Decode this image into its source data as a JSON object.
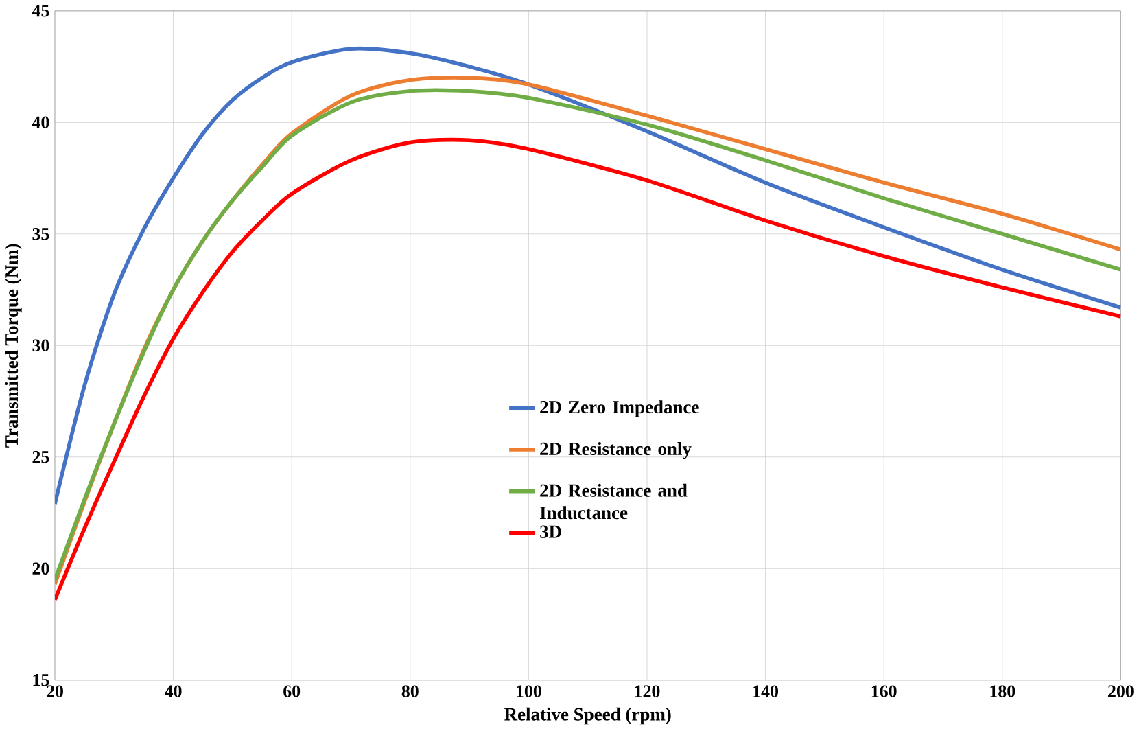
{
  "chart_data": {
    "type": "line",
    "xlabel": "Relative Speed (rpm)",
    "ylabel": "Transmitted Torque (Nm)",
    "xlim": [
      20,
      200
    ],
    "xticks": [
      20,
      40,
      60,
      80,
      100,
      120,
      140,
      160,
      180,
      200
    ],
    "ylim": [
      15,
      45
    ],
    "yticks": [
      15,
      20,
      25,
      30,
      35,
      40,
      45
    ],
    "grid": true,
    "legend": "center",
    "marker": "none",
    "line_style": "solid",
    "x": [
      20,
      25,
      30,
      35,
      40,
      45,
      50,
      55,
      60,
      70,
      80,
      90,
      100,
      120,
      140,
      160,
      180,
      200
    ],
    "series": [
      {
        "name": "2D Zero Impedance",
        "color": "#4472c4",
        "values": [
          22.9,
          28.2,
          32.3,
          35.2,
          37.5,
          39.5,
          41,
          42,
          42.7,
          43.3,
          43.1,
          42.5,
          41.7,
          39.6,
          37.3,
          35.3,
          33.4,
          31.7
        ]
      },
      {
        "name": "2D Resistance only",
        "color": "#ed7d31",
        "values": [
          19.3,
          23,
          26.5,
          29.8,
          32.5,
          34.7,
          36.5,
          38.1,
          39.5,
          41.2,
          41.9,
          42,
          41.7,
          40.3,
          38.8,
          37.3,
          35.9,
          34.3
        ]
      },
      {
        "name": "2D Resistance and Inductance",
        "color": "#70ad47",
        "values": [
          19.5,
          23.1,
          26.5,
          29.7,
          32.5,
          34.7,
          36.5,
          38,
          39.4,
          40.9,
          41.4,
          41.4,
          41.1,
          39.9,
          38.3,
          36.6,
          35,
          33.4
        ]
      },
      {
        "name": "3D",
        "color": "#ff0000",
        "values": [
          18.6,
          21.8,
          24.8,
          27.7,
          30.3,
          32.4,
          34.2,
          35.6,
          36.8,
          38.3,
          39.1,
          39.2,
          38.8,
          37.4,
          35.6,
          34,
          32.6,
          31.3
        ]
      }
    ]
  }
}
